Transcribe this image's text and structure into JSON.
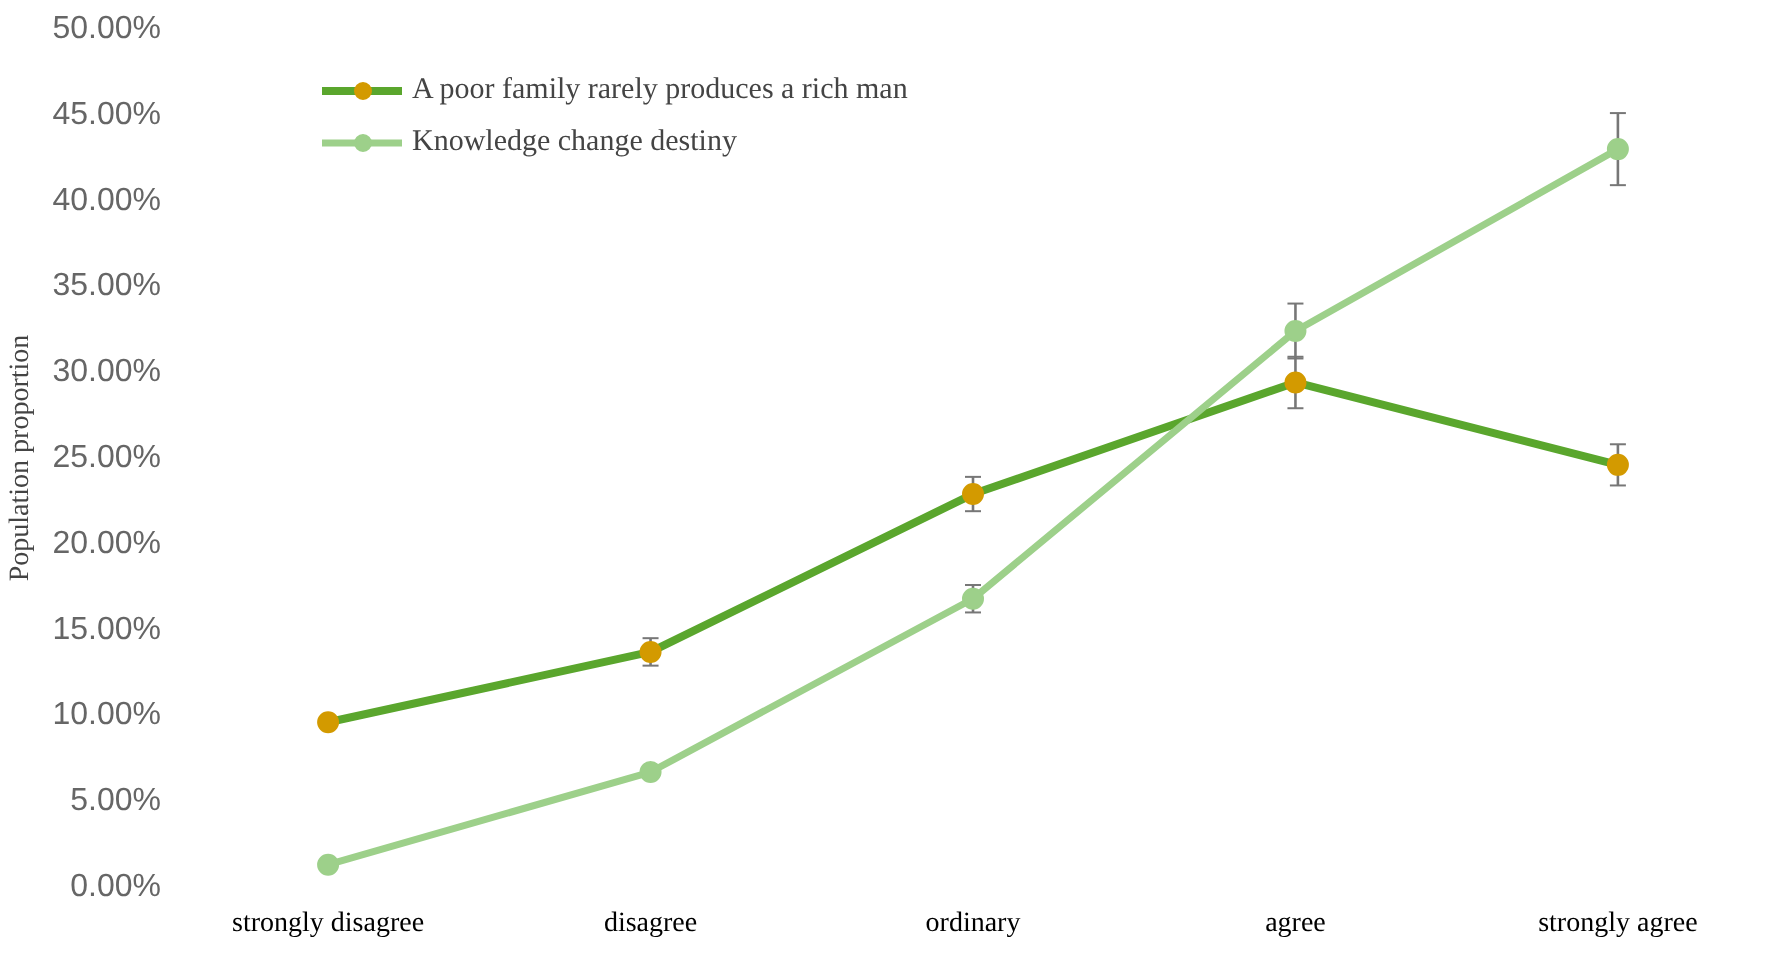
{
  "chart_data": {
    "type": "line",
    "ylabel": "Population proportion",
    "categories": [
      "strongly disagree",
      "disagree",
      "ordinary",
      "agree",
      "strongly agree"
    ],
    "series": [
      {
        "name": "A poor family rarely produces a rich man",
        "color": "#5aa62d",
        "colors": [
          "#d39a00",
          "#d39a00",
          "#d39a00",
          "#d39a00",
          "#d39a00"
        ],
        "values": [
          9.6,
          13.7,
          22.9,
          29.4,
          24.6
        ],
        "errors": [
          null,
          0.8,
          1.0,
          1.5,
          1.2
        ]
      },
      {
        "name": "Knowledge change destiny",
        "color": "#9dd08a",
        "colors": [
          "#9dd08a",
          "#9dd08a",
          "#9dd08a",
          "#9dd08a",
          "#9dd08a"
        ],
        "values": [
          1.3,
          6.7,
          16.8,
          32.4,
          43.0
        ],
        "errors": [
          null,
          null,
          0.8,
          1.6,
          2.1
        ]
      }
    ],
    "ylim": [
      0,
      50
    ],
    "yticks": [
      {
        "value": 0,
        "label": "0.00%"
      },
      {
        "value": 5,
        "label": "5.00%"
      },
      {
        "value": 10,
        "label": "10.00%"
      },
      {
        "value": 15,
        "label": "15.00%"
      },
      {
        "value": 20,
        "label": "20.00%"
      },
      {
        "value": 25,
        "label": "25.00%"
      },
      {
        "value": 30,
        "label": "30.00%"
      },
      {
        "value": 35,
        "label": "35.00%"
      },
      {
        "value": 40,
        "label": "40.00%"
      },
      {
        "value": 45,
        "label": "45.00%"
      },
      {
        "value": 50,
        "label": "50.00%"
      }
    ],
    "grid": false,
    "legend": "top left",
    "marker": "circle",
    "line_style": "solid"
  }
}
